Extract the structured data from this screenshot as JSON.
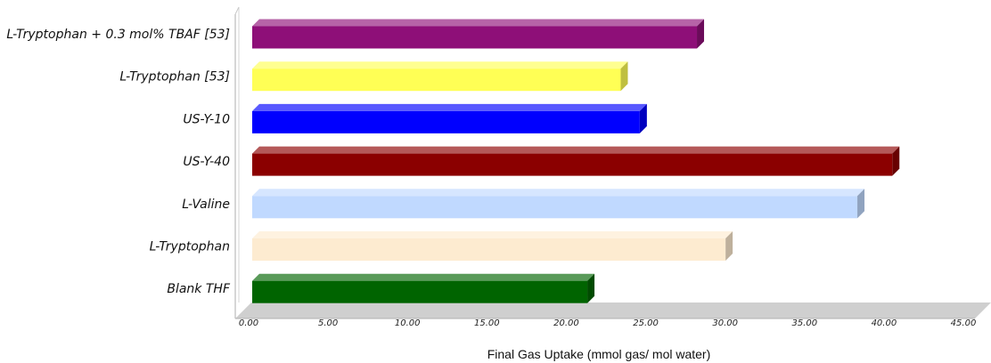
{
  "chart_data": {
    "type": "bar",
    "orientation": "horizontal",
    "title": "",
    "xlabel": "Final Gas Uptake (mmol gas/ mol water)",
    "ylabel": "",
    "xlim": [
      0,
      45
    ],
    "xticks": [
      "0.00",
      "5.00",
      "10.00",
      "15.00",
      "20.00",
      "25.00",
      "30.00",
      "35.00",
      "40.00",
      "45.00"
    ],
    "xtick_values": [
      0,
      5,
      10,
      15,
      20,
      25,
      30,
      35,
      40,
      45
    ],
    "grid": false,
    "legend": "none",
    "categories": [
      "L-Tryptophan + 0.3 mol% TBAF [53]",
      "L-Tryptophan [53]",
      "US-Y-10",
      "US-Y-40",
      "L-Valine",
      "L-Tryptophan",
      "Blank THF"
    ],
    "values": [
      28.0,
      23.2,
      24.4,
      40.3,
      38.1,
      29.8,
      21.1
    ],
    "colors": [
      "#8e0f78",
      "#ffff55",
      "#0000ff",
      "#8b0000",
      "#c0d9ff",
      "#fdebd0",
      "#006400"
    ]
  }
}
